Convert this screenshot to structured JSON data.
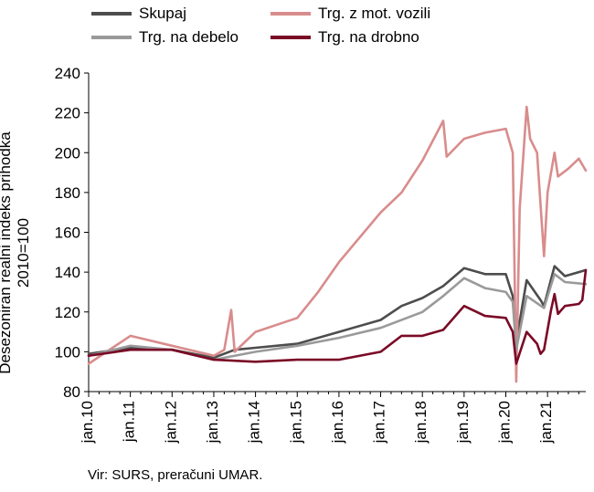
{
  "chart_data": {
    "type": "line",
    "ylabel": "Desezoniran realni indeks prihodka 2010=100",
    "ylim": [
      80,
      240
    ],
    "yticks": [
      80,
      100,
      120,
      140,
      160,
      180,
      200,
      220,
      240
    ],
    "x_start": "jan.10",
    "x_end": "dec.21",
    "x_tick_labels": [
      "jan.10",
      "jan.11",
      "jan.12",
      "jan.13",
      "jan.14",
      "jan.15",
      "jan.16",
      "jan.17",
      "jan.18",
      "jan.19",
      "jan.20",
      "jan.21"
    ],
    "grid": false,
    "legend_position": "top",
    "source": "Vir: SURS, preračuni UMAR.",
    "series": [
      {
        "name": "Skupaj",
        "color": "#4d4d4d",
        "points": [
          [
            "jan.10",
            99
          ],
          [
            "jan.11",
            102
          ],
          [
            "jan.12",
            101
          ],
          [
            "jan.13",
            97
          ],
          [
            "jul.13",
            101
          ],
          [
            "jan.14",
            102
          ],
          [
            "jan.15",
            104
          ],
          [
            "jul.15",
            107
          ],
          [
            "jan.16",
            110
          ],
          [
            "jan.17",
            116
          ],
          [
            "jul.17",
            123
          ],
          [
            "jan.18",
            127
          ],
          [
            "jul.18",
            133
          ],
          [
            "jan.19",
            142
          ],
          [
            "jul.19",
            139
          ],
          [
            "jan.20",
            139
          ],
          [
            "mar.20",
            128
          ],
          [
            "apr.20",
            105
          ],
          [
            "jul.20",
            136
          ],
          [
            "nov.20",
            126
          ],
          [
            "dec.20",
            123
          ],
          [
            "mar.21",
            143
          ],
          [
            "jun.21",
            138
          ],
          [
            "dec.21",
            141
          ]
        ]
      },
      {
        "name": "Trg. z mot. vozili",
        "color": "#d98c8c",
        "points": [
          [
            "jan.10",
            94
          ],
          [
            "jan.11",
            108
          ],
          [
            "jan.12",
            103
          ],
          [
            "jan.13",
            98
          ],
          [
            "apr.13",
            101
          ],
          [
            "jun.13",
            121
          ],
          [
            "jul.13",
            100
          ],
          [
            "jan.14",
            110
          ],
          [
            "jan.15",
            117
          ],
          [
            "jul.15",
            130
          ],
          [
            "jan.16",
            145
          ],
          [
            "jan.17",
            170
          ],
          [
            "jul.17",
            180
          ],
          [
            "jan.18",
            196
          ],
          [
            "jul.18",
            216
          ],
          [
            "aug.18",
            198
          ],
          [
            "jan.19",
            207
          ],
          [
            "jul.19",
            210
          ],
          [
            "jan.20",
            212
          ],
          [
            "mar.20",
            200
          ],
          [
            "apr.20",
            85
          ],
          [
            "may.20",
            172
          ],
          [
            "jul.20",
            223
          ],
          [
            "aug.20",
            207
          ],
          [
            "oct.20",
            200
          ],
          [
            "dec.20",
            148
          ],
          [
            "jan.21",
            180
          ],
          [
            "mar.21",
            200
          ],
          [
            "apr.21",
            188
          ],
          [
            "jul.21",
            192
          ],
          [
            "oct.21",
            197
          ],
          [
            "dec.21",
            191
          ]
        ]
      },
      {
        "name": "Trg. na debelo",
        "color": "#9a9a9a",
        "points": [
          [
            "jan.10",
            98
          ],
          [
            "jan.11",
            103
          ],
          [
            "jan.12",
            101
          ],
          [
            "jan.13",
            96
          ],
          [
            "jan.14",
            100
          ],
          [
            "jan.15",
            103
          ],
          [
            "jan.16",
            107
          ],
          [
            "jan.17",
            112
          ],
          [
            "jan.18",
            120
          ],
          [
            "jul.18",
            128
          ],
          [
            "jan.19",
            137
          ],
          [
            "jul.19",
            132
          ],
          [
            "jan.20",
            130
          ],
          [
            "mar.20",
            125
          ],
          [
            "apr.20",
            101
          ],
          [
            "jul.20",
            128
          ],
          [
            "dec.20",
            122
          ],
          [
            "mar.21",
            139
          ],
          [
            "jun.21",
            135
          ],
          [
            "dec.21",
            134
          ]
        ]
      },
      {
        "name": "Trg. na drobno",
        "color": "#7a0a26",
        "points": [
          [
            "jan.10",
            98
          ],
          [
            "jan.11",
            101
          ],
          [
            "jan.12",
            101
          ],
          [
            "jan.13",
            96
          ],
          [
            "jan.14",
            95
          ],
          [
            "jan.15",
            96
          ],
          [
            "jan.16",
            96
          ],
          [
            "jan.17",
            100
          ],
          [
            "jul.17",
            108
          ],
          [
            "jan.18",
            108
          ],
          [
            "jul.18",
            111
          ],
          [
            "jan.19",
            123
          ],
          [
            "jul.19",
            118
          ],
          [
            "jan.20",
            117
          ],
          [
            "mar.20",
            110
          ],
          [
            "apr.20",
            94
          ],
          [
            "jul.20",
            110
          ],
          [
            "oct.20",
            104
          ],
          [
            "nov.20",
            99
          ],
          [
            "dec.20",
            101
          ],
          [
            "feb.21",
            121
          ],
          [
            "mar.21",
            129
          ],
          [
            "apr.21",
            119
          ],
          [
            "jun.21",
            123
          ],
          [
            "oct.21",
            124
          ],
          [
            "nov.21",
            126
          ],
          [
            "dec.21",
            141
          ]
        ]
      }
    ]
  }
}
